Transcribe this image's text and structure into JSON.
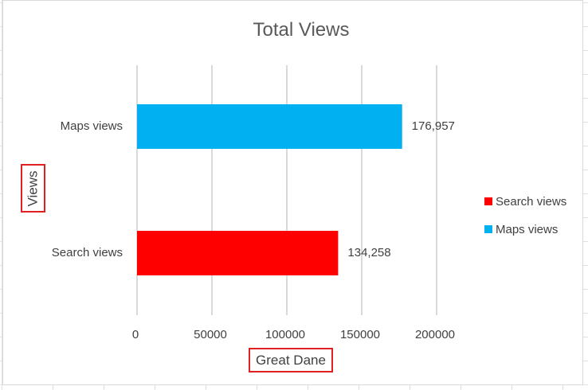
{
  "chart_data": {
    "type": "bar",
    "orientation": "horizontal",
    "title": "Total Views",
    "xlabel": "Great Dane",
    "ylabel": "Views",
    "categories": [
      "Maps views",
      "Search views"
    ],
    "series": [
      {
        "name": "Search views",
        "color": "#ff0000",
        "values": [
          null,
          134258
        ],
        "data_labels": [
          "",
          "134,258"
        ]
      },
      {
        "name": "Maps views",
        "color": "#00b0f0",
        "values": [
          176957,
          null
        ],
        "data_labels": [
          "176,957",
          ""
        ]
      }
    ],
    "x_ticks": [
      0,
      50000,
      100000,
      150000,
      200000
    ],
    "x_tick_labels": [
      "0",
      "50000",
      "100000",
      "150000",
      "200000"
    ],
    "xlim": [
      0,
      200000
    ],
    "grid": true,
    "legend": {
      "position": "right",
      "entries": [
        {
          "label": "Search views",
          "color": "#ff0000"
        },
        {
          "label": "Maps views",
          "color": "#00b0f0"
        }
      ]
    }
  }
}
